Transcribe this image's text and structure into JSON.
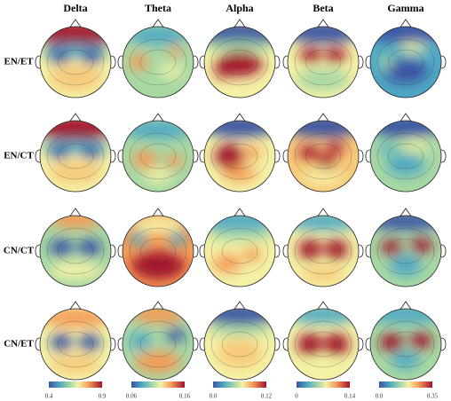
{
  "columns": [
    {
      "title": "Delta",
      "colorbar": {
        "min": "0.4",
        "max": "0.9"
      }
    },
    {
      "title": "Theta",
      "colorbar": {
        "min": "0.06",
        "max": "0.16"
      }
    },
    {
      "title": "Alpha",
      "colorbar": {
        "min": "0.0",
        "max": "0.12"
      }
    },
    {
      "title": "Beta",
      "colorbar": {
        "min": "0",
        "max": "0.14"
      }
    },
    {
      "title": "Gamma",
      "colorbar": {
        "min": "0.0",
        "max": "0.35"
      }
    }
  ],
  "rows": [
    "EN/ET",
    "EN/CT",
    "CN/CT",
    "CN/ET"
  ]
}
